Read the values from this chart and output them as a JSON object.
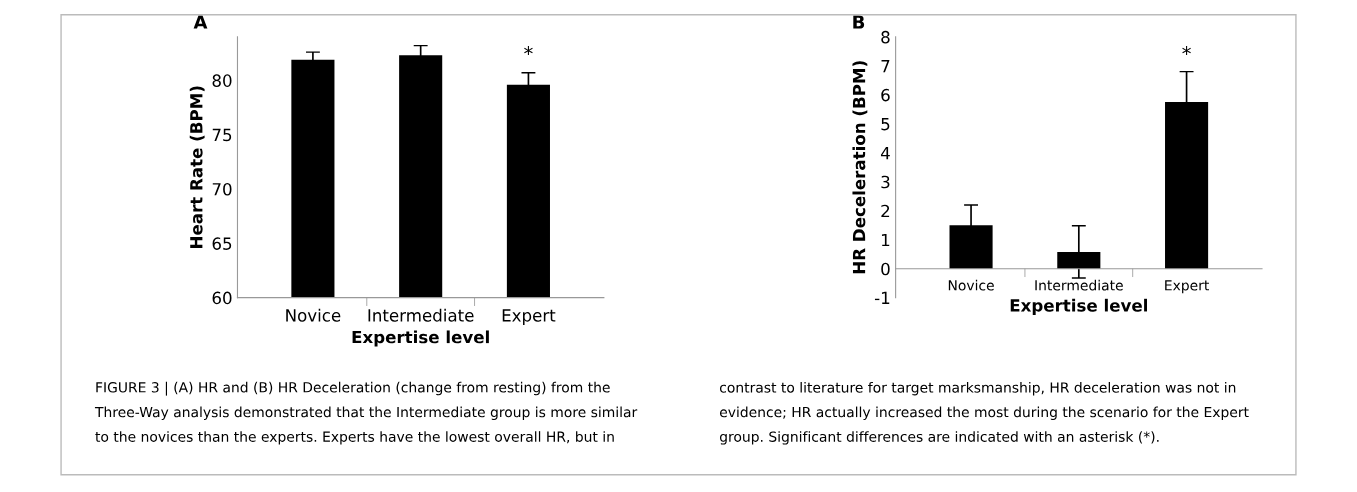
{
  "chart_data": [
    {
      "type": "bar",
      "title": "A",
      "xlabel": "Expertise level",
      "ylabel": "Heart Rate (BPM)",
      "categories": [
        "Novice",
        "Intermediate",
        "Expert"
      ],
      "values": [
        81.9,
        82.3,
        79.6
      ],
      "errors": [
        0.7,
        0.9,
        1.1
      ],
      "color": "#000000",
      "ylim": [
        60,
        84
      ],
      "yticks": [
        60,
        65,
        70,
        75,
        80
      ],
      "grid": false,
      "annotations": [
        "*",
        "FIGURE 3 | (A) HR and (B) HR Deceleration (change from resting) from the",
        "Three-Way analysis demonstrated that the Intermediate group is more similar",
        "to the novices than the experts. Experts have the lowest overall HR, but in"
      ]
    },
    {
      "type": "bar",
      "title": "B",
      "xlabel": "Expertise level",
      "ylabel": "HR Deceleration (BPM)",
      "categories": [
        "Novice",
        "Intermediate",
        "Expert"
      ],
      "values": [
        1.5,
        0.58,
        5.75
      ],
      "errors": [
        0.7,
        0.9,
        1.05
      ],
      "color": "#000000",
      "ylim": [
        -1,
        8
      ],
      "yticks": [
        -1,
        0,
        1,
        2,
        3,
        4,
        5,
        6,
        7,
        8
      ],
      "grid": false,
      "annotations": [
        "*",
        "contrast to literature for target marksmanship, HR deceleration was not in",
        "evidence; HR actually increased the most during the scenario for the Expert",
        "group. Significant differences are indicated with an asterisk (*)."
      ]
    }
  ]
}
